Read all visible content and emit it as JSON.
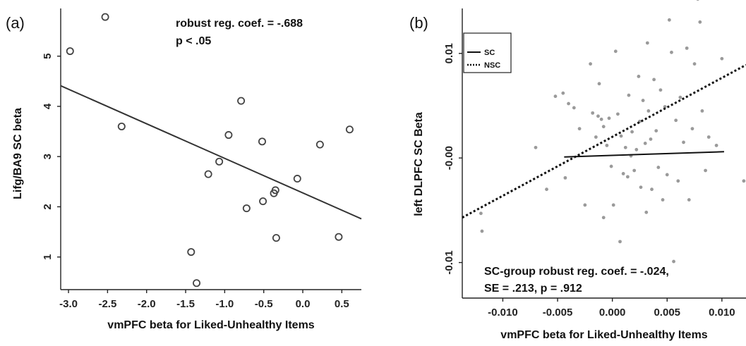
{
  "chart_data": [
    {
      "type": "scatter",
      "panel_label": "(a)",
      "xlabel": "vmPFC beta for Liked-Unhealthy Items",
      "ylabel": "Lifg/BA9 SC beta",
      "xlim": [
        -3.1,
        0.75
      ],
      "ylim": [
        0.35,
        5.95
      ],
      "xticks": [
        "-3.0",
        "-2.5",
        "-2.0",
        "-1.5",
        "-1.0",
        "-0.5",
        "0.0",
        "0.5"
      ],
      "xtick_values": [
        -3.0,
        -2.5,
        -2.0,
        -1.5,
        -1.0,
        -0.5,
        0.0,
        0.5
      ],
      "yticks": [
        "1",
        "2",
        "3",
        "4",
        "5"
      ],
      "ytick_values": [
        1,
        2,
        3,
        4,
        5
      ],
      "annotation_lines": [
        "robust reg. coef. = -.688",
        "p < .05"
      ],
      "points": [
        {
          "x": -2.98,
          "y": 5.1
        },
        {
          "x": -2.53,
          "y": 5.78
        },
        {
          "x": -2.32,
          "y": 3.6
        },
        {
          "x": -1.43,
          "y": 1.1
        },
        {
          "x": -1.36,
          "y": 0.48
        },
        {
          "x": -1.21,
          "y": 2.65
        },
        {
          "x": -1.07,
          "y": 2.9
        },
        {
          "x": -0.95,
          "y": 3.43
        },
        {
          "x": -0.79,
          "y": 4.11
        },
        {
          "x": -0.72,
          "y": 1.97
        },
        {
          "x": -0.52,
          "y": 3.3
        },
        {
          "x": -0.51,
          "y": 2.11
        },
        {
          "x": -0.37,
          "y": 2.27
        },
        {
          "x": -0.35,
          "y": 2.33
        },
        {
          "x": -0.34,
          "y": 1.38
        },
        {
          "x": -0.07,
          "y": 2.56
        },
        {
          "x": 0.22,
          "y": 3.24
        },
        {
          "x": 0.46,
          "y": 1.4
        },
        {
          "x": 0.6,
          "y": 3.54
        }
      ],
      "fit_line": {
        "x": [
          -3.1,
          0.75
        ],
        "y": [
          4.41,
          1.76
        ]
      }
    },
    {
      "type": "scatter",
      "panel_label": "(b)",
      "xlabel": "vmPFC beta for Liked-Unhealthy Items",
      "ylabel": "left DLPFC SC Beta",
      "xlim": [
        -0.0137,
        0.0122
      ],
      "ylim": [
        -0.0134,
        0.0143
      ],
      "xticks": [
        "-0.010",
        "-0.005",
        "0.000",
        "0.005",
        "0.010"
      ],
      "xtick_values": [
        -0.01,
        -0.005,
        0.0,
        0.005,
        0.01
      ],
      "yticks": [
        "0.01",
        "-0.00",
        "-0.01"
      ],
      "ytick_values": [
        0.01,
        0.0,
        -0.01
      ],
      "legend": {
        "position": "top-left",
        "entries": [
          {
            "label": "SC",
            "style": "solid"
          },
          {
            "label": "NSC",
            "style": "dotted"
          }
        ]
      },
      "annotation_lines": [
        "SC-group robust reg. coef. = -.024,",
        "SE = .213, p = .912"
      ],
      "points": [
        {
          "x": -0.012,
          "y": -0.0053
        },
        {
          "x": -0.0119,
          "y": -0.007
        },
        {
          "x": -0.0052,
          "y": 0.0059
        },
        {
          "x": -0.0045,
          "y": 0.0062
        },
        {
          "x": -0.004,
          "y": 0.0052
        },
        {
          "x": -0.0043,
          "y": -0.0019
        },
        {
          "x": -0.003,
          "y": 0.0028
        },
        {
          "x": -0.002,
          "y": 0.009
        },
        {
          "x": -0.0018,
          "y": 0.0043
        },
        {
          "x": -0.0015,
          "y": 0.002
        },
        {
          "x": -0.0013,
          "y": 0.004
        },
        {
          "x": -0.001,
          "y": 0.0037
        },
        {
          "x": -0.0008,
          "y": 0.003
        },
        {
          "x": -0.0005,
          "y": 0.0012
        },
        {
          "x": -0.0003,
          "y": 0.0038
        },
        {
          "x": -0.0001,
          "y": -0.0008
        },
        {
          "x": 0.0003,
          "y": 0.0102
        },
        {
          "x": 0.0005,
          "y": 0.0042
        },
        {
          "x": 0.0008,
          "y": 0.0021
        },
        {
          "x": 0.001,
          "y": -0.0015
        },
        {
          "x": 0.0012,
          "y": 0.001
        },
        {
          "x": 0.0014,
          "y": -0.0018
        },
        {
          "x": 0.0015,
          "y": 0.006
        },
        {
          "x": 0.0017,
          "y": 0.0002
        },
        {
          "x": 0.0018,
          "y": 0.0025
        },
        {
          "x": 0.002,
          "y": -0.0012
        },
        {
          "x": 0.0022,
          "y": 0.0008
        },
        {
          "x": 0.0024,
          "y": 0.0078
        },
        {
          "x": 0.0025,
          "y": 0.0035
        },
        {
          "x": 0.0026,
          "y": -0.0028
        },
        {
          "x": 0.0028,
          "y": 0.0055
        },
        {
          "x": 0.003,
          "y": 0.0014
        },
        {
          "x": 0.0031,
          "y": -0.0052
        },
        {
          "x": 0.0033,
          "y": 0.0045
        },
        {
          "x": 0.0035,
          "y": 0.0018
        },
        {
          "x": 0.0036,
          "y": -0.003
        },
        {
          "x": 0.0038,
          "y": 0.0075
        },
        {
          "x": 0.004,
          "y": 0.0026
        },
        {
          "x": 0.0042,
          "y": -0.0009
        },
        {
          "x": 0.0044,
          "y": 0.0065
        },
        {
          "x": 0.0046,
          "y": -0.004
        },
        {
          "x": 0.0048,
          "y": 0.0049
        },
        {
          "x": 0.005,
          "y": -0.0016
        },
        {
          "x": 0.0052,
          "y": 0.0132
        },
        {
          "x": 0.0054,
          "y": 0.0101
        },
        {
          "x": 0.0056,
          "y": -0.0099
        },
        {
          "x": 0.0058,
          "y": 0.0036
        },
        {
          "x": 0.006,
          "y": -0.0022
        },
        {
          "x": 0.0062,
          "y": 0.0058
        },
        {
          "x": 0.0065,
          "y": 0.0015
        },
        {
          "x": 0.0068,
          "y": 0.0105
        },
        {
          "x": 0.007,
          "y": -0.004
        },
        {
          "x": 0.0073,
          "y": 0.0028
        },
        {
          "x": 0.0075,
          "y": 0.009
        },
        {
          "x": 0.0078,
          "y": 0.0152
        },
        {
          "x": 0.008,
          "y": 0.013
        },
        {
          "x": 0.0082,
          "y": 0.0045
        },
        {
          "x": 0.0085,
          "y": -0.0012
        },
        {
          "x": 0.0088,
          "y": 0.002
        },
        {
          "x": 0.0095,
          "y": 0.0012
        },
        {
          "x": 0.01,
          "y": 0.0095
        },
        {
          "x": 0.012,
          "y": -0.0022
        },
        {
          "x": -0.006,
          "y": -0.003
        },
        {
          "x": -0.007,
          "y": 0.001
        },
        {
          "x": -0.0025,
          "y": -0.0045
        },
        {
          "x": 0.0007,
          "y": -0.008
        },
        {
          "x": -0.0008,
          "y": -0.0057
        },
        {
          "x": -0.0035,
          "y": 0.0048
        },
        {
          "x": 0.0001,
          "y": -0.0045
        },
        {
          "x": -0.0012,
          "y": 0.0071
        },
        {
          "x": 0.0032,
          "y": 0.011
        },
        {
          "x": 0.0063,
          "y": 0.0155
        }
      ],
      "series": [
        {
          "name": "SC",
          "style": "solid",
          "x": [
            -0.0044,
            0.0102
          ],
          "y": [
            0.0001,
            0.0006
          ]
        },
        {
          "name": "NSC",
          "style": "dotted",
          "x": [
            -0.0137,
            0.0122
          ],
          "y": [
            -0.0057,
            0.0089
          ]
        }
      ]
    }
  ]
}
